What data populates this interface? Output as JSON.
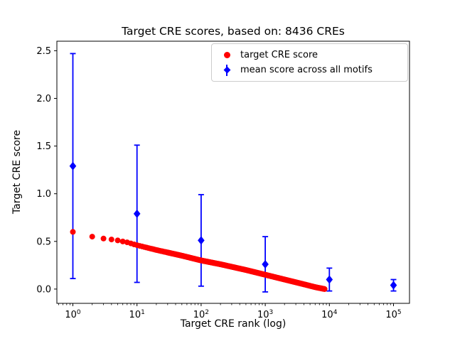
{
  "chart_data": {
    "type": "scatter",
    "title": "Target CRE scores, based on: 8436 CREs",
    "xlabel": "Target CRE rank (log)",
    "ylabel": "Target CRE score",
    "x_scale": "log",
    "xlim_log10": [
      -0.25,
      5.25
    ],
    "ylim": [
      -0.15,
      2.6
    ],
    "xticks_log10": [
      0,
      1,
      2,
      3,
      4,
      5
    ],
    "yticks": [
      0.0,
      0.5,
      1.0,
      1.5,
      2.0,
      2.5
    ],
    "grid": false,
    "legend_position": "upper right (inside axes)",
    "series": [
      {
        "name": "target CRE score",
        "marker": "circle",
        "color": "#ff0000",
        "n_points": 8436,
        "sample_points": [
          [
            1,
            0.6
          ],
          [
            2,
            0.55
          ],
          [
            3,
            0.53
          ],
          [
            4,
            0.52
          ],
          [
            5,
            0.51
          ],
          [
            7,
            0.49
          ],
          [
            10,
            0.46
          ],
          [
            20,
            0.41
          ],
          [
            50,
            0.35
          ],
          [
            100,
            0.3
          ],
          [
            200,
            0.26
          ],
          [
            500,
            0.2
          ],
          [
            1000,
            0.15
          ],
          [
            2000,
            0.1
          ],
          [
            4000,
            0.05
          ],
          [
            6000,
            0.02
          ],
          [
            8436,
            0.0
          ]
        ]
      },
      {
        "name": "mean score across all motifs",
        "marker": "diamond",
        "color": "#0000ff",
        "x": [
          1,
          10,
          100,
          1000,
          10000,
          100000
        ],
        "y": [
          1.29,
          0.79,
          0.51,
          0.26,
          0.1,
          0.04
        ],
        "yerr": [
          1.18,
          0.72,
          0.48,
          0.29,
          0.12,
          0.06
        ]
      }
    ]
  }
}
